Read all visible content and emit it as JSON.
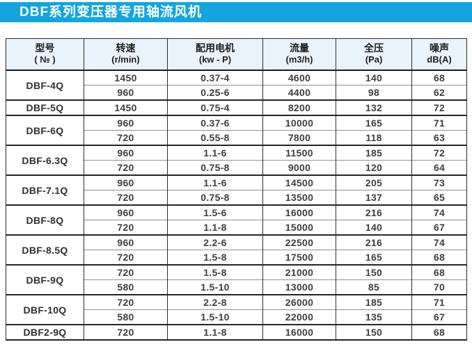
{
  "title": "DBF系列变压器专用轴流风机",
  "colors": {
    "banner_blue": "#12a5e0",
    "header_bg": "#e9f3fb",
    "border_dark": "#242424",
    "border_light": "#8f8f8f",
    "text": "#3e3e3e"
  },
  "table": {
    "headers": [
      {
        "line1": "型号",
        "line2": "( № )"
      },
      {
        "line1": "转速",
        "line2": "(r/min)"
      },
      {
        "line1": "配用电机",
        "line2": "(kw - P)"
      },
      {
        "line1": "流量",
        "line2": "(m3/h)"
      },
      {
        "line1": "全压",
        "line2": "(Pa)"
      },
      {
        "line1": "噪声",
        "line2": "dB(A)"
      }
    ],
    "groups": [
      {
        "model": "DBF-4Q",
        "rows": [
          [
            "1450",
            "0.37-4",
            "4600",
            "140",
            "68"
          ],
          [
            "960",
            "0.25-6",
            "4400",
            "98",
            "62"
          ]
        ]
      },
      {
        "model": "DBF-5Q",
        "rows": [
          [
            "1450",
            "0.75-4",
            "8200",
            "132",
            "72"
          ]
        ]
      },
      {
        "model": "DBF-6Q",
        "rows": [
          [
            "960",
            "0.37-6",
            "10000",
            "165",
            "71"
          ],
          [
            "720",
            "0.55-8",
            "7800",
            "118",
            "63"
          ]
        ]
      },
      {
        "model": "DBF-6.3Q",
        "rows": [
          [
            "960",
            "1.1-6",
            "11500",
            "185",
            "72"
          ],
          [
            "720",
            "0.75-8",
            "9000",
            "120",
            "64"
          ]
        ]
      },
      {
        "model": "DBF-7.1Q",
        "rows": [
          [
            "960",
            "1.1-6",
            "14500",
            "205",
            "73"
          ],
          [
            "720",
            "0.75-8",
            "13500",
            "137",
            "65"
          ]
        ]
      },
      {
        "model": "DBF-8Q",
        "rows": [
          [
            "960",
            "1.5-6",
            "16000",
            "216",
            "74"
          ],
          [
            "720",
            "1.1-8",
            "15000",
            "140",
            "67"
          ]
        ]
      },
      {
        "model": "DBF-8.5Q",
        "rows": [
          [
            "960",
            "2.2-6",
            "22500",
            "216",
            "74"
          ],
          [
            "720",
            "1.5-8",
            "17500",
            "165",
            "68"
          ]
        ]
      },
      {
        "model": "DBF-9Q",
        "rows": [
          [
            "720",
            "1.5-8",
            "21000",
            "150",
            "68"
          ],
          [
            "580",
            "1.5-10",
            "13000",
            "85",
            "70"
          ]
        ]
      },
      {
        "model": "DBF-10Q",
        "rows": [
          [
            "720",
            "2.2-8",
            "26000",
            "185",
            "71"
          ],
          [
            "580",
            "1.5-10",
            "22000",
            "135",
            "67"
          ]
        ]
      },
      {
        "model": "DBF2-9Q",
        "rows": [
          [
            "720",
            "1.1-8",
            "16000",
            "150",
            "68"
          ]
        ]
      }
    ]
  }
}
